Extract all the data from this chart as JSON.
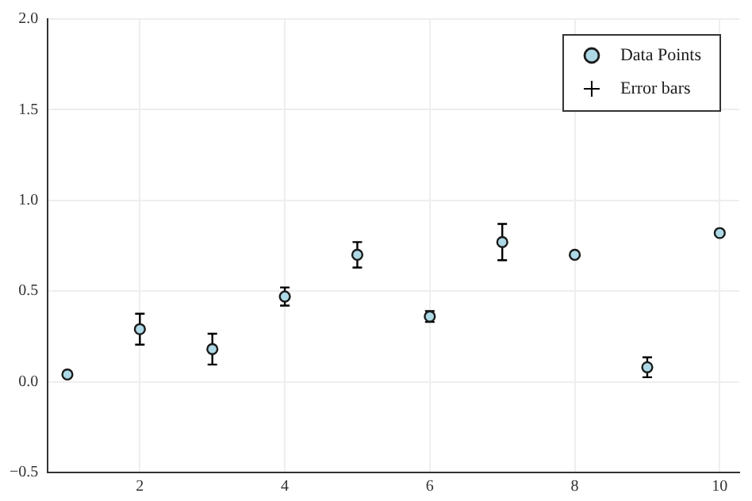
{
  "chart_data": {
    "type": "scatter",
    "x": [
      1,
      2,
      3,
      4,
      5,
      6,
      7,
      8,
      9,
      10
    ],
    "series": [
      {
        "name": "Data Points",
        "type": "scatter",
        "marker": "circle",
        "color": "#add8e6",
        "values": [
          0.04,
          0.29,
          0.18,
          0.47,
          0.7,
          0.36,
          0.77,
          0.7,
          0.08,
          0.82
        ],
        "errors": [
          null,
          0.085,
          0.085,
          0.05,
          0.07,
          0.03,
          0.1,
          null,
          0.055,
          null
        ]
      },
      {
        "name": "Error bars",
        "type": "scatter",
        "marker": "cross",
        "color": "#000000",
        "values": [
          null,
          null,
          null,
          null,
          null,
          null,
          null,
          null,
          null,
          null
        ]
      }
    ],
    "xlim": [
      0.73,
      10.27
    ],
    "xticks": [
      2,
      4,
      6,
      8,
      10
    ],
    "ylim": [
      -0.5,
      2
    ],
    "yticks": [
      {
        "value": -0.5,
        "label": "−0.5"
      },
      {
        "value": 0,
        "label": "0.0"
      },
      {
        "value": 0.5,
        "label": "0.5"
      },
      {
        "value": 1,
        "label": "1.0"
      },
      {
        "value": 1.5,
        "label": "1.5"
      },
      {
        "value": 2,
        "label": "2.0"
      }
    ],
    "grid": true,
    "legend": "top right"
  }
}
